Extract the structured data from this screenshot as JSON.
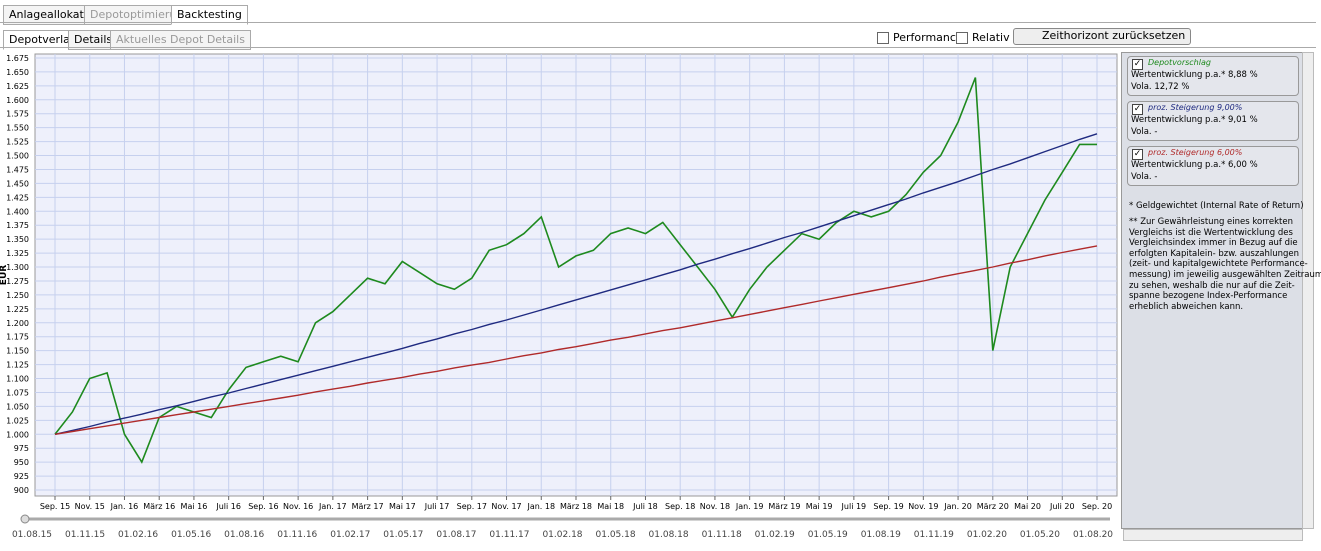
{
  "tabs": [
    "Anlageallokation",
    "Depotoptimierung",
    "Backtesting"
  ],
  "subtabs": [
    "Depotverlauf",
    "Details",
    "Aktuelles Depot Details"
  ],
  "controls": {
    "performance": "Performance",
    "relativ": "Relativ",
    "reset_button": "Zeithorizont zurücksetzen"
  },
  "chart_data": {
    "type": "line",
    "y_label": "EUR",
    "grid": true,
    "x": [
      "2015-09",
      "2015-10",
      "2015-11",
      "2015-12",
      "2016-01",
      "2016-02",
      "2016-03",
      "2016-04",
      "2016-05",
      "2016-06",
      "2016-07",
      "2016-08",
      "2016-09",
      "2016-10",
      "2016-11",
      "2016-12",
      "2017-01",
      "2017-02",
      "2017-03",
      "2017-04",
      "2017-05",
      "2017-06",
      "2017-07",
      "2017-08",
      "2017-09",
      "2017-10",
      "2017-11",
      "2017-12",
      "2018-01",
      "2018-02",
      "2018-03",
      "2018-04",
      "2018-05",
      "2018-06",
      "2018-07",
      "2018-08",
      "2018-09",
      "2018-10",
      "2018-11",
      "2018-12",
      "2019-01",
      "2019-02",
      "2019-03",
      "2019-04",
      "2019-05",
      "2019-06",
      "2019-07",
      "2019-08",
      "2019-09",
      "2019-10",
      "2019-11",
      "2019-12",
      "2020-01",
      "2020-02",
      "2020-03",
      "2020-04",
      "2020-05",
      "2020-06",
      "2020-07",
      "2020-08",
      "2020-09"
    ],
    "xticks": [
      {
        "value": "2015-09",
        "label": "Sep. 15"
      },
      {
        "value": "2015-11",
        "label": "Nov. 15"
      },
      {
        "value": "2016-01",
        "label": "Jan. 16"
      },
      {
        "value": "2016-03",
        "label": "März 16"
      },
      {
        "value": "2016-05",
        "label": "Mai 16"
      },
      {
        "value": "2016-07",
        "label": "Juli 16"
      },
      {
        "value": "2016-09",
        "label": "Sep. 16"
      },
      {
        "value": "2016-11",
        "label": "Nov. 16"
      },
      {
        "value": "2017-01",
        "label": "Jan. 17"
      },
      {
        "value": "2017-03",
        "label": "März 17"
      },
      {
        "value": "2017-05",
        "label": "Mai 17"
      },
      {
        "value": "2017-07",
        "label": "Juli 17"
      },
      {
        "value": "2017-09",
        "label": "Sep. 17"
      },
      {
        "value": "2017-11",
        "label": "Nov. 17"
      },
      {
        "value": "2018-01",
        "label": "Jan. 18"
      },
      {
        "value": "2018-03",
        "label": "März 18"
      },
      {
        "value": "2018-05",
        "label": "Mai 18"
      },
      {
        "value": "2018-07",
        "label": "Juli 18"
      },
      {
        "value": "2018-09",
        "label": "Sep. 18"
      },
      {
        "value": "2018-11",
        "label": "Nov. 18"
      },
      {
        "value": "2019-01",
        "label": "Jan. 19"
      },
      {
        "value": "2019-03",
        "label": "März 19"
      },
      {
        "value": "2019-05",
        "label": "Mai 19"
      },
      {
        "value": "2019-07",
        "label": "Juli 19"
      },
      {
        "value": "2019-09",
        "label": "Sep. 19"
      },
      {
        "value": "2019-11",
        "label": "Nov. 19"
      },
      {
        "value": "2020-01",
        "label": "Jan. 20"
      },
      {
        "value": "2020-03",
        "label": "März 20"
      },
      {
        "value": "2020-05",
        "label": "Mai 20"
      },
      {
        "value": "2020-07",
        "label": "Juli 20"
      },
      {
        "value": "2020-09",
        "label": "Sep. 20"
      }
    ],
    "ylim": [
      900,
      1675
    ],
    "yticks": [
      900,
      925,
      950,
      975,
      {
        "value": 1000,
        "label": "1.000"
      },
      {
        "value": 1025,
        "label": "1.025"
      },
      {
        "value": 1050,
        "label": "1.050"
      },
      {
        "value": 1075,
        "label": "1.075"
      },
      {
        "value": 1100,
        "label": "1.100"
      },
      {
        "value": 1125,
        "label": "1.125"
      },
      {
        "value": 1150,
        "label": "1.150"
      },
      {
        "value": 1175,
        "label": "1.175"
      },
      {
        "value": 1200,
        "label": "1.200"
      },
      {
        "value": 1225,
        "label": "1.225"
      },
      {
        "value": 1250,
        "label": "1.250"
      },
      {
        "value": 1275,
        "label": "1.275"
      },
      {
        "value": 1300,
        "label": "1.300"
      },
      {
        "value": 1325,
        "label": "1.325"
      },
      {
        "value": 1350,
        "label": "1.350"
      },
      {
        "value": 1375,
        "label": "1.375"
      },
      {
        "value": 1400,
        "label": "1.400"
      },
      {
        "value": 1425,
        "label": "1.425"
      },
      {
        "value": 1450,
        "label": "1.450"
      },
      {
        "value": 1475,
        "label": "1.475"
      },
      {
        "value": 1500,
        "label": "1.500"
      },
      {
        "value": 1525,
        "label": "1.525"
      },
      {
        "value": 1550,
        "label": "1.550"
      },
      {
        "value": 1575,
        "label": "1.575"
      },
      {
        "value": 1600,
        "label": "1.600"
      },
      {
        "value": 1625,
        "label": "1.625"
      },
      {
        "value": 1650,
        "label": "1.650"
      },
      {
        "value": 1675,
        "label": "1.675"
      }
    ],
    "series": [
      {
        "name": "Depotvorschlag",
        "color": "#1e8a1e",
        "values": [
          1000,
          1040,
          1100,
          1110,
          1000,
          950,
          1030,
          1050,
          1040,
          1030,
          1080,
          1120,
          1130,
          1140,
          1130,
          1200,
          1220,
          1250,
          1280,
          1270,
          1310,
          1290,
          1270,
          1260,
          1280,
          1330,
          1340,
          1360,
          1390,
          1300,
          1320,
          1330,
          1360,
          1370,
          1360,
          1380,
          1340,
          1300,
          1260,
          1210,
          1260,
          1300,
          1330,
          1360,
          1350,
          1380,
          1400,
          1390,
          1400,
          1430,
          1470,
          1500,
          1560,
          1640,
          1150,
          1300,
          1360,
          1420,
          1470,
          1520,
          1520
        ]
      },
      {
        "name": "proz. Steigerung 9,00%",
        "color": "#1f2a80",
        "values": [
          1000,
          1007,
          1014,
          1022,
          1029,
          1036,
          1044,
          1051,
          1059,
          1067,
          1074,
          1082,
          1090,
          1098,
          1106,
          1114,
          1122,
          1130,
          1138,
          1146,
          1154,
          1163,
          1171,
          1180,
          1188,
          1197,
          1205,
          1214,
          1223,
          1232,
          1241,
          1250,
          1259,
          1268,
          1277,
          1286,
          1295,
          1305,
          1314,
          1324,
          1333,
          1343,
          1353,
          1362,
          1372,
          1382,
          1392,
          1402,
          1412,
          1422,
          1433,
          1443,
          1453,
          1464,
          1475,
          1485,
          1496,
          1507,
          1518,
          1529,
          1539
        ]
      },
      {
        "name": "proz. Steigerung 6,00%",
        "color": "#b02a2a",
        "values": [
          1000,
          1005,
          1010,
          1015,
          1020,
          1025,
          1030,
          1035,
          1040,
          1045,
          1050,
          1055,
          1060,
          1065,
          1070,
          1076,
          1081,
          1086,
          1092,
          1097,
          1102,
          1108,
          1113,
          1119,
          1124,
          1129,
          1135,
          1141,
          1146,
          1152,
          1157,
          1163,
          1169,
          1174,
          1180,
          1186,
          1191,
          1197,
          1203,
          1209,
          1215,
          1221,
          1227,
          1233,
          1239,
          1245,
          1251,
          1257,
          1263,
          1269,
          1275,
          1282,
          1288,
          1294,
          1300,
          1307,
          1313,
          1320,
          1326,
          1332,
          1338
        ]
      }
    ]
  },
  "legend_panel": {
    "entries": [
      {
        "line1": "Wertentwicklung p.a.* 8,88 %",
        "line2": "Vola. 12,72 %"
      },
      {
        "line1": "Wertentwicklung p.a.* 9,01 %",
        "line2": "Vola. -"
      },
      {
        "line1": "Wertentwicklung p.a.* 6,00 %",
        "line2": "Vola. -"
      }
    ],
    "note1": "* Geldgewichtet (Internal Rate of Return)",
    "note2": [
      "** Zur Gewährleistung eines korrekten",
      "Vergleichs ist die Wertentwicklung des",
      "Vergleichsindex immer in Bezug auf die",
      "erfolgten Kapitalein- bzw. auszahlungen",
      "(zeit- und kapitalgewichtete Performance-",
      "messung) im jeweilig ausgewählten Zeitraum",
      "zu sehen, weshalb die nur auf die Zeit-",
      "spanne bezogene Index-Performance",
      "erheblich abweichen kann."
    ]
  },
  "timeline_labels": [
    "01.08.15",
    "01.11.15",
    "01.02.16",
    "01.05.16",
    "01.08.16",
    "01.11.16",
    "01.02.17",
    "01.05.17",
    "01.08.17",
    "01.11.17",
    "01.02.18",
    "01.05.18",
    "01.08.18",
    "01.11.18",
    "01.02.19",
    "01.05.19",
    "01.08.19",
    "01.11.19",
    "01.02.20",
    "01.05.20",
    "01.08.20"
  ]
}
